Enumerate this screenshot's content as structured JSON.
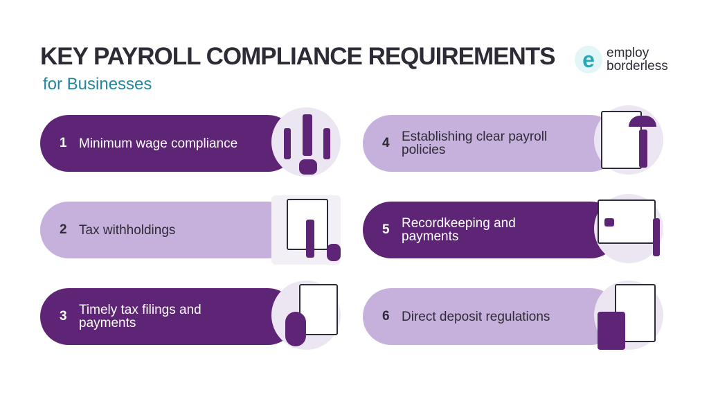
{
  "header": {
    "title": "KEY PAYROLL COMPLIANCE REQUIREMENTS",
    "subtitle": "for Businesses"
  },
  "logo": {
    "mark": "e",
    "line1": "employ",
    "line2": "borderless"
  },
  "colors": {
    "dark": "#5e2475",
    "light": "#c6b1dc",
    "title": "#2c2b36",
    "accent": "#23869a"
  },
  "items": [
    {
      "num": "1",
      "label": "Minimum wage compliance",
      "icon": "people-coins-illustration"
    },
    {
      "num": "2",
      "label": "Tax withholdings",
      "icon": "tax-hourglass-illustration"
    },
    {
      "num": "3",
      "label": "Timely tax filings and payments",
      "icon": "calendar-dollar-illustration"
    },
    {
      "num": "4",
      "label": "Establishing clear payroll policies",
      "icon": "umbrella-clipboard-illustration"
    },
    {
      "num": "5",
      "label": "Recordkeeping and payments",
      "icon": "monitor-records-illustration"
    },
    {
      "num": "6",
      "label": "Direct deposit regulations",
      "icon": "calculator-clipboard-illustration"
    }
  ]
}
